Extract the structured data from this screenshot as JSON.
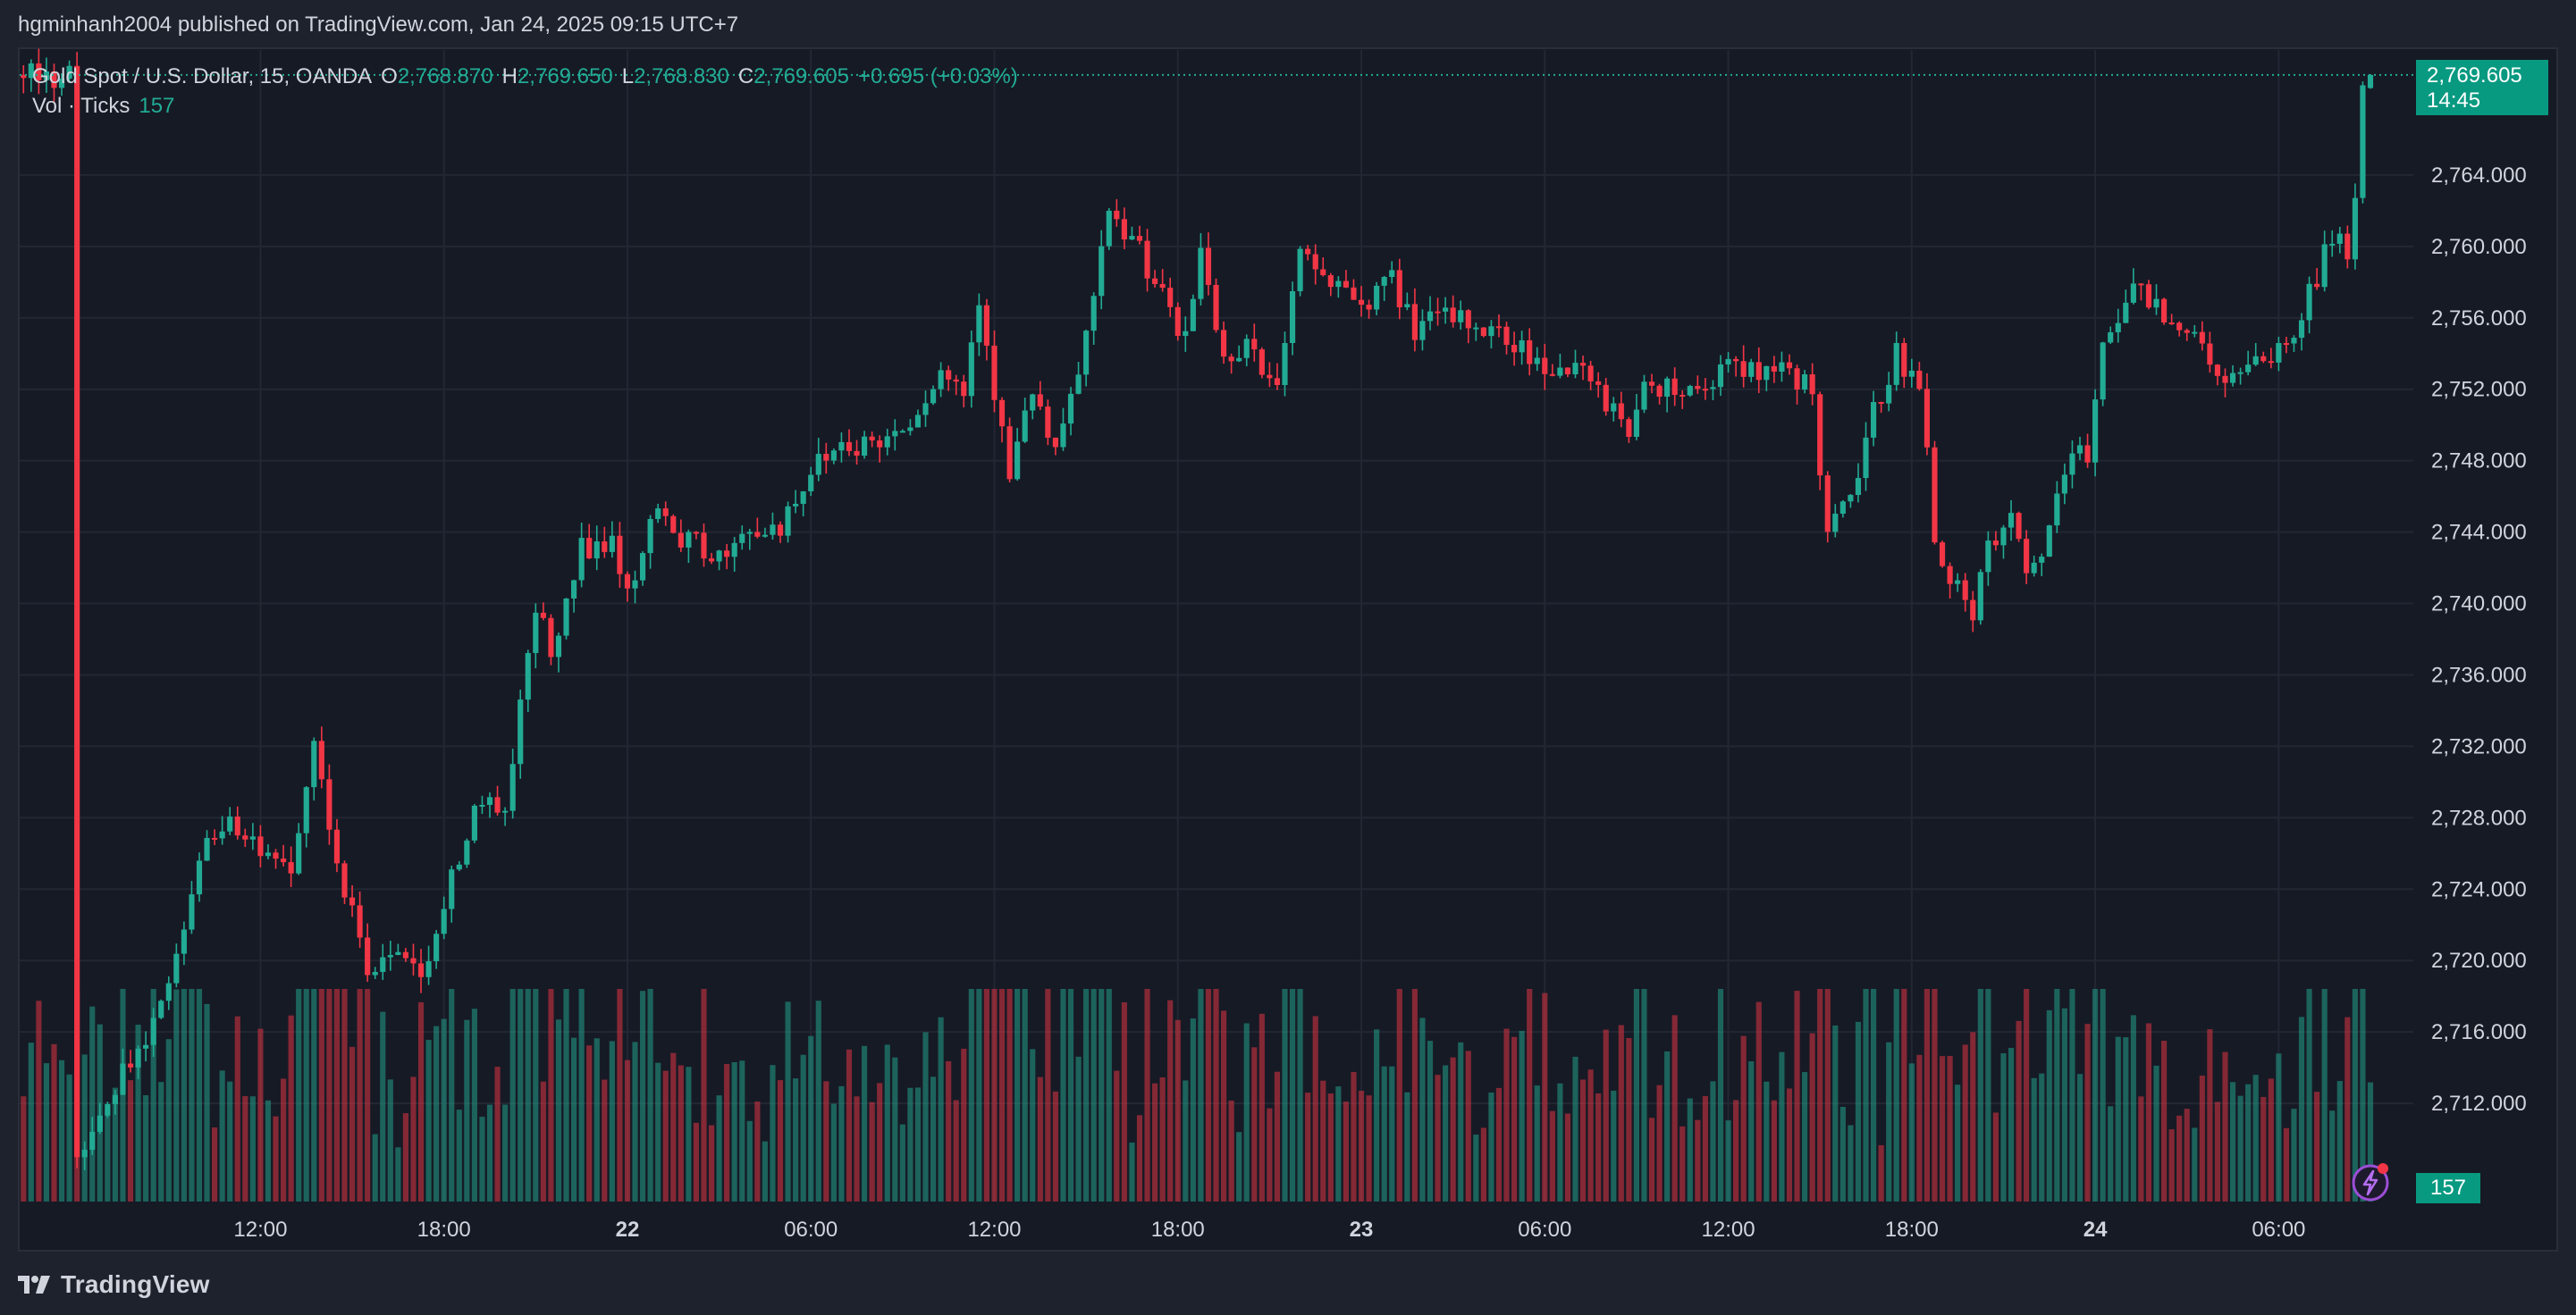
{
  "publish_line": "hgminhanh2004 published on TradingView.com, Jan 24, 2025 09:15 UTC+7",
  "legend": {
    "symbol": "Gold Spot / U.S. Dollar, 15, OANDA",
    "o_label": "O",
    "o_value": "2,768.870",
    "h_label": "H",
    "h_value": "2,769.650",
    "l_label": "L",
    "l_value": "2,768.830",
    "c_label": "C",
    "c_value": "2,769.605",
    "change": "+0.695 (+0.03%)"
  },
  "volume_legend": {
    "label": "Vol · Ticks",
    "value": "157"
  },
  "price_badge": {
    "price": "2,769.605",
    "countdown": "14:45"
  },
  "volume_badge": "157",
  "footer": {
    "brand": "TradingView"
  },
  "colors": {
    "up": "#22ab94",
    "down": "#f23645",
    "up_volume": "#22ab94",
    "down_volume": "#f23645",
    "background": "#161a25",
    "grid": "#232733",
    "text": "#d1d4dc"
  },
  "icons": [
    "lightning-bolt-icon",
    "tradingview-logo-icon"
  ],
  "chart_data": {
    "type": "candlestick",
    "title": "Gold Spot / U.S. Dollar, 15, OANDA",
    "interval": "15",
    "y_axis": {
      "ticks": [
        "2,712.000",
        "2,716.000",
        "2,720.000",
        "2,724.000",
        "2,728.000",
        "2,732.000",
        "2,736.000",
        "2,740.000",
        "2,744.000",
        "2,748.000",
        "2,752.000",
        "2,756.000",
        "2,760.000",
        "2,764.000"
      ],
      "ylim": [
        2706.5,
        2771.0
      ]
    },
    "x_axis": {
      "ticks": [
        {
          "label": "12:00",
          "bold": false
        },
        {
          "label": "18:00",
          "bold": false
        },
        {
          "label": "22",
          "bold": true
        },
        {
          "label": "06:00",
          "bold": false
        },
        {
          "label": "12:00",
          "bold": false
        },
        {
          "label": "18:00",
          "bold": false
        },
        {
          "label": "23",
          "bold": true
        },
        {
          "label": "06:00",
          "bold": false
        },
        {
          "label": "12:00",
          "bold": false
        },
        {
          "label": "18:00",
          "bold": false
        },
        {
          "label": "24",
          "bold": true
        },
        {
          "label": "06:00",
          "bold": false
        }
      ],
      "tick_bar_index": [
        12,
        36,
        60,
        84,
        108,
        132,
        156,
        180,
        204,
        228,
        252,
        276
      ]
    },
    "anchors": [
      [
        -12,
        2709.0
      ],
      [
        0,
        2718.0
      ],
      [
        4,
        2726.0
      ],
      [
        8,
        2727.5
      ],
      [
        12,
        2726.0
      ],
      [
        16,
        2724.5
      ],
      [
        19,
        2732.0
      ],
      [
        22,
        2726.0
      ],
      [
        26,
        2719.0
      ],
      [
        30,
        2720.5
      ],
      [
        33,
        2718.5
      ],
      [
        37,
        2725.0
      ],
      [
        40,
        2728.5
      ],
      [
        44,
        2728.5
      ],
      [
        46,
        2734.0
      ],
      [
        48,
        2739.5
      ],
      [
        50,
        2737.5
      ],
      [
        54,
        2743.0
      ],
      [
        58,
        2743.5
      ],
      [
        60,
        2741.0
      ],
      [
        64,
        2745.0
      ],
      [
        66,
        2744.0
      ],
      [
        70,
        2743.0
      ],
      [
        73,
        2742.5
      ],
      [
        76,
        2744.0
      ],
      [
        80,
        2744.5
      ],
      [
        84,
        2747.5
      ],
      [
        88,
        2749.0
      ],
      [
        93,
        2749.0
      ],
      [
        97,
        2750.5
      ],
      [
        101,
        2753.0
      ],
      [
        104,
        2752.0
      ],
      [
        106,
        2757.5
      ],
      [
        108,
        2752.0
      ],
      [
        110,
        2747.0
      ],
      [
        113,
        2752.0
      ],
      [
        116,
        2748.0
      ],
      [
        119,
        2753.0
      ],
      [
        121,
        2757.0
      ],
      [
        123,
        2761.5
      ],
      [
        127,
        2760.0
      ],
      [
        131,
        2756.0
      ],
      [
        133,
        2754.5
      ],
      [
        135,
        2760.0
      ],
      [
        138,
        2753.5
      ],
      [
        141,
        2755.0
      ],
      [
        144,
        2752.0
      ],
      [
        146,
        2754.0
      ],
      [
        148,
        2759.5
      ],
      [
        152,
        2758.0
      ],
      [
        156,
        2757.0
      ],
      [
        160,
        2758.0
      ],
      [
        163,
        2755.5
      ],
      [
        168,
        2756.0
      ],
      [
        172,
        2755.5
      ],
      [
        176,
        2754.5
      ],
      [
        180,
        2753.5
      ],
      [
        184,
        2753.0
      ],
      [
        188,
        2751.5
      ],
      [
        191,
        2750.0
      ],
      [
        194,
        2752.5
      ],
      [
        198,
        2752.0
      ],
      [
        201,
        2752.0
      ],
      [
        204,
        2754.0
      ],
      [
        208,
        2752.5
      ],
      [
        212,
        2753.0
      ],
      [
        215,
        2752.0
      ],
      [
        217,
        2743.5
      ],
      [
        220,
        2746.0
      ],
      [
        222,
        2749.0
      ],
      [
        224,
        2752.0
      ],
      [
        226,
        2754.0
      ],
      [
        229,
        2752.0
      ],
      [
        231,
        2744.0
      ],
      [
        234,
        2740.5
      ],
      [
        236,
        2739.0
      ],
      [
        238,
        2743.0
      ],
      [
        241,
        2744.5
      ],
      [
        243,
        2741.5
      ],
      [
        246,
        2744.0
      ],
      [
        249,
        2748.5
      ],
      [
        251,
        2748.0
      ],
      [
        253,
        2755.0
      ],
      [
        256,
        2757.0
      ],
      [
        258,
        2757.5
      ],
      [
        261,
        2756.5
      ],
      [
        264,
        2755.5
      ],
      [
        267,
        2753.5
      ],
      [
        270,
        2752.5
      ],
      [
        274,
        2753.5
      ],
      [
        278,
        2755.0
      ],
      [
        281,
        2758.5
      ],
      [
        284,
        2761.0
      ],
      [
        285,
        2759.5
      ],
      [
        286,
        2762.0
      ],
      [
        287,
        2769.0
      ],
      [
        288,
        2769.605
      ]
    ],
    "last_bar": {
      "open": 2768.87,
      "high": 2769.65,
      "low": 2768.83,
      "close": 2769.605
    },
    "last_volume": 157
  }
}
